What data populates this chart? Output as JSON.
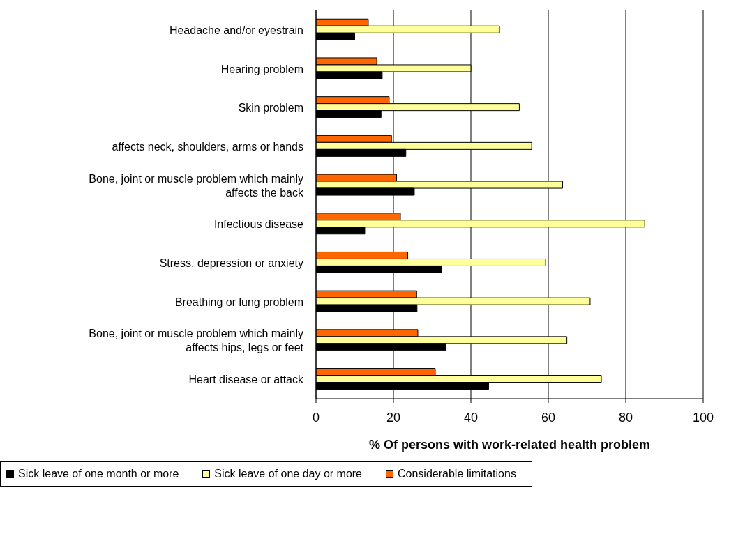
{
  "chart_data": {
    "type": "bar",
    "orientation": "horizontal",
    "xlabel": "% Of persons with work-related health problem",
    "categories": [
      "Headache and/or eyestrain",
      "Hearing problem",
      "Skin problem",
      "affects neck, shoulders, arms or hands",
      "Bone, joint or muscle problem which mainly affects the back",
      "Infectious disease",
      "Stress, depression or anxiety",
      "Breathing or lung problem",
      "Bone, joint or muscle problem which mainly affects hips, legs or feet",
      "Heart disease or attack"
    ],
    "series": [
      {
        "name": "Considerable limitations",
        "color": "#ff6600",
        "values": [
          13.5,
          15.7,
          18.9,
          19.5,
          20.8,
          21.8,
          23.7,
          26.0,
          26.3,
          30.8
        ]
      },
      {
        "name": "Sick leave of one day or more",
        "color": "#ffff99",
        "values": [
          47.4,
          40.0,
          52.5,
          55.7,
          63.7,
          84.9,
          59.3,
          70.8,
          64.8,
          73.7
        ]
      },
      {
        "name": "Sick leave of one month or more",
        "color": "#000000",
        "values": [
          10.0,
          17.1,
          16.8,
          23.2,
          25.4,
          12.6,
          32.5,
          26.1,
          33.5,
          44.6
        ]
      }
    ],
    "xlim": [
      0,
      100
    ],
    "xticks": [
      0,
      20,
      40,
      60,
      80,
      100
    ],
    "grid": "x",
    "legend": "bottom"
  }
}
